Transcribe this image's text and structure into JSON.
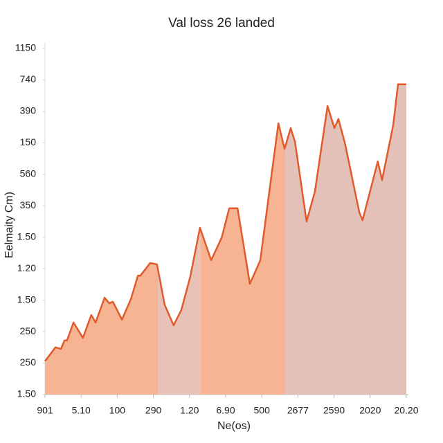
{
  "chart_data": {
    "type": "area",
    "title": "Val loss 26 landed",
    "x_label": "Ne(os)",
    "y_label": "Eelmaity Cm)",
    "color": "#e05a2b",
    "xlim": [
      0,
      10
    ],
    "ylim": [
      0,
      11
    ],
    "xticks": [
      {
        "value": 0,
        "label": "901"
      },
      {
        "value": 1,
        "label": "5.10"
      },
      {
        "value": 2,
        "label": "100"
      },
      {
        "value": 3,
        "label": "290"
      },
      {
        "value": 4,
        "label": "1.20"
      },
      {
        "value": 5,
        "label": "6.90"
      },
      {
        "value": 6,
        "label": "500"
      },
      {
        "value": 7,
        "label": "2677"
      },
      {
        "value": 8,
        "label": "2590"
      },
      {
        "value": 9,
        "label": "2020"
      },
      {
        "value": 10,
        "label": "20.20"
      }
    ],
    "yticks": [
      {
        "value": 0,
        "label": "1.50"
      },
      {
        "value": 1,
        "label": "250"
      },
      {
        "value": 2,
        "label": "250"
      },
      {
        "value": 3,
        "label": "1.50"
      },
      {
        "value": 4,
        "label": "1.20"
      },
      {
        "value": 5,
        "label": "1.50"
      },
      {
        "value": 6,
        "label": "350"
      },
      {
        "value": 7,
        "label": "560"
      },
      {
        "value": 8,
        "label": "150"
      },
      {
        "value": 9,
        "label": "390"
      },
      {
        "value": 10,
        "label": "740"
      },
      {
        "value": 11,
        "label": "1150"
      }
    ],
    "x": [
      0,
      0.29,
      0.44,
      0.54,
      0.61,
      0.79,
      1.05,
      1.28,
      1.4,
      1.65,
      1.78,
      1.88,
      2.13,
      2.38,
      2.57,
      2.64,
      2.91,
      3.1,
      3.31,
      3.56,
      3.77,
      4.02,
      4.29,
      4.6,
      4.89,
      5.1,
      5.33,
      5.67,
      5.96,
      6.17,
      6.46,
      6.63,
      6.8,
      6.92,
      7.24,
      7.47,
      7.82,
      8.01,
      8.12,
      8.3,
      8.7,
      8.79,
      9.21,
      9.33,
      9.64,
      9.77,
      10
    ],
    "values": [
      1.06,
      1.5,
      1.45,
      1.72,
      1.72,
      2.29,
      1.8,
      2.53,
      2.29,
      3.08,
      2.9,
      2.95,
      2.38,
      3.04,
      3.78,
      3.78,
      4.18,
      4.14,
      2.86,
      2.2,
      2.68,
      3.74,
      5.3,
      4.27,
      4.99,
      5.92,
      5.92,
      3.52,
      4.27,
      6.12,
      8.62,
      7.81,
      8.47,
      8.03,
      5.5,
      6.45,
      9.17,
      8.47,
      8.76,
      7.99,
      5.79,
      5.54,
      7.41,
      6.82,
      8.58,
      9.86,
      9.86
    ]
  }
}
